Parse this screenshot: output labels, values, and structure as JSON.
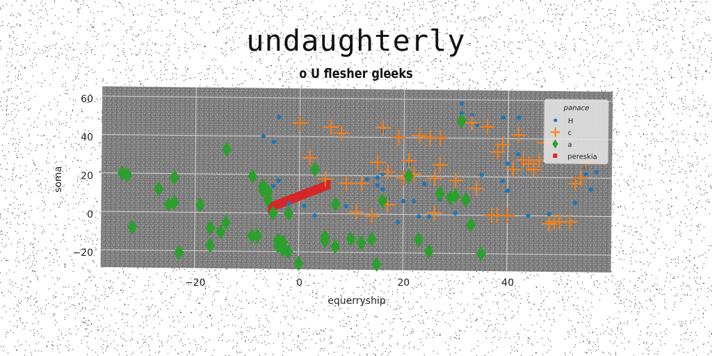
{
  "chart_data": {
    "type": "scatter",
    "title": "undaughterly",
    "subtitle": "o U flesher gleeks",
    "xlabel": "equerryship",
    "ylabel": "soma",
    "xlim": [
      -38,
      60
    ],
    "ylim": [
      -29,
      65
    ],
    "xticks": [
      -20,
      0,
      20,
      40
    ],
    "yticks": [
      -20,
      0,
      20,
      40,
      60
    ],
    "grid": true,
    "legend": {
      "title": "panace",
      "placement": "top-right"
    },
    "series": [
      {
        "name": "H",
        "marker": "dot",
        "color": "#1f77b4",
        "points": [
          [
            -7,
            40
          ],
          [
            -4,
            50
          ],
          [
            -5,
            37
          ],
          [
            -4,
            17
          ],
          [
            -5,
            14
          ],
          [
            -2,
            5
          ],
          [
            1,
            4
          ],
          [
            3,
            -1
          ],
          [
            9,
            4
          ],
          [
            13,
            18
          ],
          [
            15,
            19
          ],
          [
            15,
            15
          ],
          [
            16,
            13
          ],
          [
            16,
            21
          ],
          [
            16,
            43
          ],
          [
            17,
            8
          ],
          [
            19,
            -4
          ],
          [
            20,
            7
          ],
          [
            21,
            26
          ],
          [
            22,
            7
          ],
          [
            23,
            -1
          ],
          [
            24,
            16
          ],
          [
            25,
            -1
          ],
          [
            27,
            8
          ],
          [
            30,
            1
          ],
          [
            31,
            53
          ],
          [
            31,
            58
          ],
          [
            33,
            52
          ],
          [
            34,
            47
          ],
          [
            35,
            21
          ],
          [
            39,
            51
          ],
          [
            39,
            18
          ],
          [
            40,
            13
          ],
          [
            40,
            27
          ],
          [
            42,
            32
          ],
          [
            42,
            51
          ],
          [
            44,
            0
          ],
          [
            48,
            1
          ],
          [
            53,
            7
          ],
          [
            53,
            20
          ],
          [
            55,
            22
          ],
          [
            55,
            25
          ],
          [
            56,
            14
          ],
          [
            57,
            23
          ]
        ]
      },
      {
        "name": "c",
        "marker": "plus",
        "color": "#ff7f0e",
        "points": [
          [
            0,
            47
          ],
          [
            2,
            29
          ],
          [
            5,
            18
          ],
          [
            6,
            45
          ],
          [
            8,
            42
          ],
          [
            9,
            16
          ],
          [
            11,
            1
          ],
          [
            12,
            16
          ],
          [
            14,
            -1
          ],
          [
            15,
            27
          ],
          [
            16,
            45
          ],
          [
            17,
            22
          ],
          [
            17,
            5
          ],
          [
            19,
            40
          ],
          [
            20,
            19
          ],
          [
            21,
            28
          ],
          [
            22,
            21
          ],
          [
            23,
            41
          ],
          [
            25,
            40
          ],
          [
            26,
            19
          ],
          [
            26,
            1
          ],
          [
            27,
            26
          ],
          [
            27,
            40
          ],
          [
            30,
            18
          ],
          [
            33,
            48
          ],
          [
            34,
            14
          ],
          [
            36,
            46
          ],
          [
            37,
            0
          ],
          [
            38,
            33
          ],
          [
            38,
            0
          ],
          [
            39,
            37
          ],
          [
            40,
            0
          ],
          [
            41,
            24
          ],
          [
            42,
            42
          ],
          [
            43,
            29
          ],
          [
            44,
            27
          ],
          [
            45,
            24
          ],
          [
            46,
            29
          ],
          [
            47,
            38
          ],
          [
            48,
            -4
          ],
          [
            49,
            -3
          ],
          [
            50,
            -3
          ],
          [
            52,
            -3
          ],
          [
            53,
            17
          ],
          [
            54,
            20
          ],
          [
            55,
            28
          ]
        ]
      },
      {
        "name": "a",
        "marker": "diamond",
        "color": "#2ca02c",
        "points": [
          [
            -34,
            20
          ],
          [
            -33,
            19
          ],
          [
            -32,
            -8
          ],
          [
            -27,
            12
          ],
          [
            -25,
            4
          ],
          [
            -24,
            5
          ],
          [
            -24,
            18
          ],
          [
            -23,
            -21
          ],
          [
            -19,
            4
          ],
          [
            -17,
            -8
          ],
          [
            -17,
            -17
          ],
          [
            -15,
            -10
          ],
          [
            -14,
            -5
          ],
          [
            -14,
            33
          ],
          [
            -9,
            19
          ],
          [
            -9,
            -12
          ],
          [
            -8,
            -12
          ],
          [
            -7,
            14
          ],
          [
            -7,
            12
          ],
          [
            -6,
            11
          ],
          [
            -6,
            7
          ],
          [
            -5,
            0
          ],
          [
            -4,
            -14
          ],
          [
            -4,
            -17
          ],
          [
            -3,
            -19
          ],
          [
            -3,
            -15
          ],
          [
            -2,
            -20
          ],
          [
            -2,
            0
          ],
          [
            0,
            -26
          ],
          [
            3,
            23
          ],
          [
            5,
            -14
          ],
          [
            5,
            -12
          ],
          [
            7,
            -17
          ],
          [
            7,
            5
          ],
          [
            10,
            -13
          ],
          [
            12,
            -15
          ],
          [
            14,
            -13
          ],
          [
            15,
            -26
          ],
          [
            16,
            7
          ],
          [
            21,
            20
          ],
          [
            23,
            -13
          ],
          [
            25,
            -19
          ],
          [
            27,
            11
          ],
          [
            29,
            9
          ],
          [
            30,
            10
          ],
          [
            31,
            49
          ],
          [
            32,
            8
          ],
          [
            33,
            -5
          ],
          [
            35,
            -20
          ]
        ]
      },
      {
        "name": "pereskia",
        "marker": "polygon",
        "color": "#d62728",
        "points": [
          [
            -6,
            5
          ],
          [
            -6,
            0
          ],
          [
            6,
            13
          ],
          [
            6,
            18
          ]
        ]
      }
    ]
  }
}
